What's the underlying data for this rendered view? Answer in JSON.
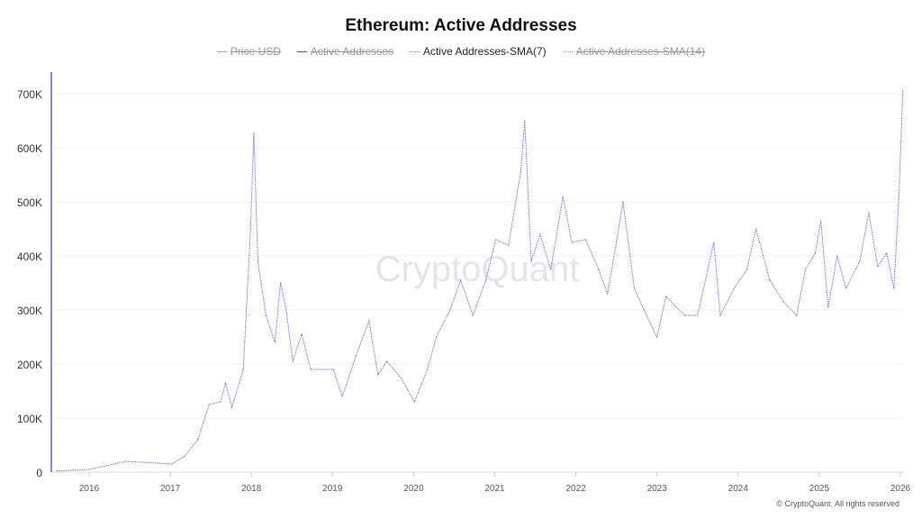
{
  "chart_data": {
    "type": "line",
    "title": "Ethereum: Active Addresses",
    "legend": [
      {
        "name": "Price USD",
        "visible": false,
        "style": "solid",
        "color": "#b0b0b0"
      },
      {
        "name": "Active Addresses",
        "visible": false,
        "style": "solid",
        "color": "#555555"
      },
      {
        "name": "Active Addresses-SMA(7)",
        "visible": true,
        "style": "dotted",
        "color": "#7c6fe0"
      },
      {
        "name": "Active Addresses-SMA(14)",
        "visible": false,
        "style": "dotted",
        "color": "#999999"
      }
    ],
    "legend_placement": "top-center",
    "xlabel": "",
    "ylabel": "",
    "xlim": [
      2015.6,
      2026.05
    ],
    "ylim": [
      0,
      700000
    ],
    "grid": true,
    "x_ticks": [
      "2016",
      "2017",
      "2018",
      "2019",
      "2020",
      "2021",
      "2022",
      "2023",
      "2024",
      "2025",
      "2026"
    ],
    "y_ticks": [
      "0",
      "100K",
      "200K",
      "300K",
      "400K",
      "500K",
      "600K",
      "700K"
    ],
    "series": [
      {
        "name": "Active Addresses-SMA(7)",
        "x": [
          2015.6,
          2016.0,
          2016.46,
          2017.02,
          2017.18,
          2017.34,
          2017.48,
          2017.62,
          2017.68,
          2017.76,
          2017.9,
          2017.99,
          2018.03,
          2018.08,
          2018.18,
          2018.29,
          2018.36,
          2018.43,
          2018.51,
          2018.62,
          2018.73,
          2019.01,
          2019.12,
          2019.29,
          2019.45,
          2019.56,
          2019.67,
          2019.84,
          2020.01,
          2020.17,
          2020.28,
          2020.45,
          2020.58,
          2020.73,
          2020.89,
          2021.01,
          2021.17,
          2021.32,
          2021.37,
          2021.45,
          2021.56,
          2021.69,
          2021.84,
          2021.95,
          2022.12,
          2022.28,
          2022.39,
          2022.5,
          2022.58,
          2022.72,
          2022.84,
          2023.0,
          2023.11,
          2023.34,
          2023.5,
          2023.7,
          2023.78,
          2023.95,
          2024.11,
          2024.22,
          2024.39,
          2024.56,
          2024.72,
          2024.83,
          2024.95,
          2025.02,
          2025.11,
          2025.22,
          2025.33,
          2025.5,
          2025.61,
          2025.72,
          2025.83,
          2025.92,
          2025.98,
          2026.03
        ],
        "values": [
          2000,
          5000,
          20000,
          15000,
          30000,
          60000,
          125000,
          130000,
          165000,
          120000,
          190000,
          450000,
          627000,
          390000,
          290000,
          240000,
          350000,
          300000,
          205000,
          255000,
          190000,
          190000,
          140000,
          215000,
          280000,
          180000,
          205000,
          175000,
          130000,
          190000,
          250000,
          300000,
          355000,
          290000,
          355000,
          430000,
          420000,
          555000,
          650000,
          390000,
          440000,
          375000,
          510000,
          425000,
          430000,
          375000,
          330000,
          425000,
          500000,
          340000,
          300000,
          250000,
          325000,
          290000,
          290000,
          425000,
          290000,
          340000,
          375000,
          450000,
          355000,
          315000,
          290000,
          375000,
          405000,
          465000,
          305000,
          400000,
          340000,
          390000,
          480000,
          380000,
          405000,
          340000,
          505000,
          705000
        ]
      }
    ]
  },
  "watermark": "CryptoQuant",
  "copyright": "© CryptoQuant. All rights reserved"
}
